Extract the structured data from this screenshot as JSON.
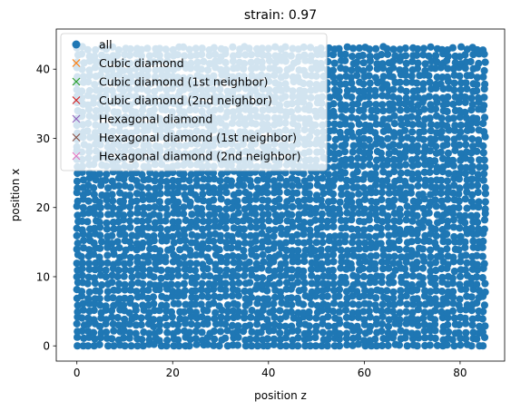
{
  "chart_data": {
    "type": "scatter",
    "title": "strain: 0.97",
    "xlabel": "position z",
    "ylabel": "position x",
    "xlim": [
      -4.3,
      89.3
    ],
    "ylim": [
      -2.2,
      45.8
    ],
    "xticks": [
      0,
      20,
      40,
      60,
      80
    ],
    "yticks": [
      0,
      10,
      20,
      30,
      40
    ],
    "grid": false,
    "legend_position": "top-left",
    "scatter_extent": {
      "x": [
        0,
        85.5
      ],
      "y": [
        0,
        43.6
      ]
    },
    "series": [
      {
        "name": "all",
        "marker": "circle",
        "color": "#1f77b4",
        "points": "dense"
      },
      {
        "name": "Cubic diamond",
        "marker": "x",
        "color": "#ff7f0e",
        "points": []
      },
      {
        "name": "Cubic diamond (1st neighbor)",
        "marker": "x",
        "color": "#2ca02c",
        "points": []
      },
      {
        "name": "Cubic diamond (2nd neighbor)",
        "marker": "x",
        "color": "#d62728",
        "points": []
      },
      {
        "name": "Hexagonal diamond",
        "marker": "x",
        "color": "#9467bd",
        "points": []
      },
      {
        "name": "Hexagonal diamond (1st neighbor)",
        "marker": "x",
        "color": "#8c564b",
        "points": []
      },
      {
        "name": "Hexagonal diamond (2nd neighbor)",
        "marker": "x",
        "color": "#e377c2",
        "points": []
      }
    ]
  }
}
